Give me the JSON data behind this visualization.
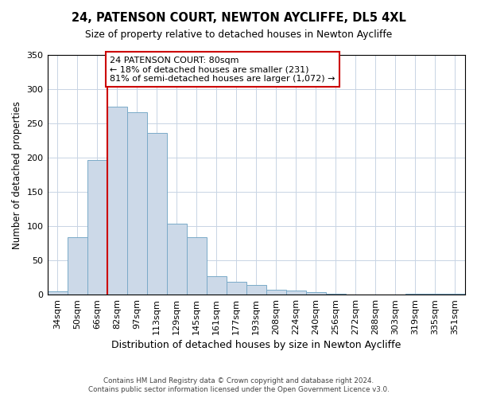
{
  "title": "24, PATENSON COURT, NEWTON AYCLIFFE, DL5 4XL",
  "subtitle": "Size of property relative to detached houses in Newton Aycliffe",
  "xlabel": "Distribution of detached houses by size in Newton Aycliffe",
  "ylabel": "Number of detached properties",
  "bar_labels": [
    "34sqm",
    "50sqm",
    "66sqm",
    "82sqm",
    "97sqm",
    "113sqm",
    "129sqm",
    "145sqm",
    "161sqm",
    "177sqm",
    "193sqm",
    "208sqm",
    "224sqm",
    "240sqm",
    "256sqm",
    "272sqm",
    "288sqm",
    "303sqm",
    "319sqm",
    "335sqm",
    "351sqm"
  ],
  "bar_values": [
    5,
    84,
    196,
    275,
    266,
    236,
    104,
    84,
    27,
    19,
    14,
    7,
    6,
    3,
    1,
    0,
    0,
    0,
    1,
    1,
    1
  ],
  "bar_color": "#ccd9e8",
  "bar_edge_color": "#7aaac8",
  "vline_color": "#cc0000",
  "annotation_title": "24 PATENSON COURT: 80sqm",
  "annotation_line1": "← 18% of detached houses are smaller (231)",
  "annotation_line2": "81% of semi-detached houses are larger (1,072) →",
  "annotation_box_color": "#ffffff",
  "annotation_box_edge": "#cc0000",
  "ylim": [
    0,
    350
  ],
  "yticks": [
    0,
    50,
    100,
    150,
    200,
    250,
    300,
    350
  ],
  "footer1": "Contains HM Land Registry data © Crown copyright and database right 2024.",
  "footer2": "Contains public sector information licensed under the Open Government Licence v3.0.",
  "background_color": "#ffffff",
  "grid_color": "#c8d4e4"
}
